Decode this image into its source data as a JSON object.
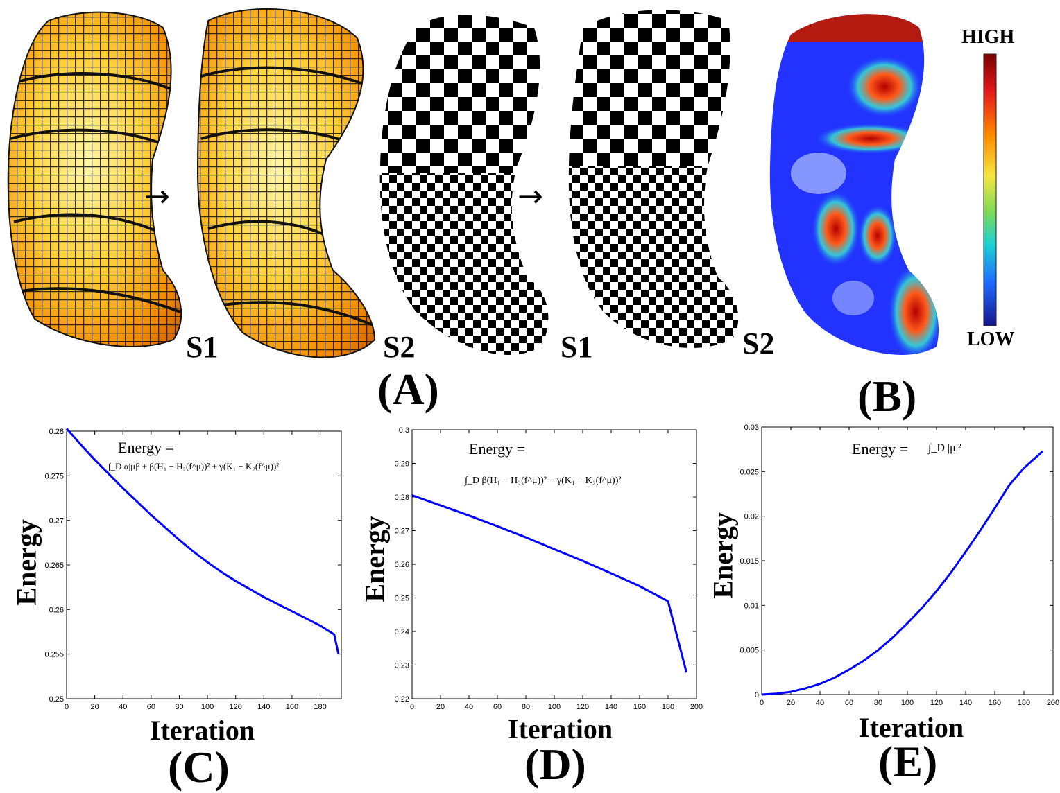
{
  "figure": {
    "panel_labels": [
      "(A)",
      "(B)",
      "(C)",
      "(D)",
      "(E)"
    ],
    "surface_labels": [
      "S1",
      "S2",
      "S1",
      "S2"
    ],
    "colorbar": {
      "high_label": "HIGH",
      "low_label": "LOW",
      "colors": [
        "#7a0000",
        "#e41a1c",
        "#ff8c00",
        "#f5e642",
        "#7ed957",
        "#1ed1d4",
        "#1e6bff",
        "#16168c"
      ]
    },
    "arrow_glyph": "→"
  },
  "chart_data": [
    {
      "panel": "(C)",
      "type": "line",
      "formula_title": "Energy =",
      "formula_body": "∫_D α|μ|² + β(H₁ − H₂(f^μ))² + γ(K₁ − K₂(f^μ))²",
      "xlabel": "Iteration",
      "ylabel": "Energy",
      "xlim": [
        0,
        195
      ],
      "ylim": [
        0.25,
        0.28
      ],
      "xticks": [
        "0",
        "20",
        "40",
        "60",
        "80",
        "100",
        "120",
        "140",
        "160",
        "180"
      ],
      "yticks": [
        "0.25",
        "0.255",
        "0.26",
        "0.265",
        "0.27",
        "0.275",
        "0.28"
      ],
      "line_color": "#0000ff",
      "series": [
        {
          "x": [
            0,
            10,
            20,
            30,
            40,
            50,
            60,
            70,
            80,
            90,
            100,
            110,
            120,
            130,
            140,
            150,
            160,
            170,
            180,
            190,
            193
          ],
          "y": [
            0.2803,
            0.2785,
            0.2768,
            0.2752,
            0.2736,
            0.2721,
            0.2706,
            0.2692,
            0.2678,
            0.2665,
            0.2653,
            0.2642,
            0.2632,
            0.2623,
            0.2614,
            0.2606,
            0.2598,
            0.259,
            0.2582,
            0.2572,
            0.255
          ]
        }
      ]
    },
    {
      "panel": "(D)",
      "type": "line",
      "formula_title": "Energy =",
      "formula_body": "∫_D β(H₁ − H₂(f^μ))² + γ(K₁ − K₂(f^μ))²",
      "xlabel": "Iteration",
      "ylabel": "Energy",
      "xlim": [
        0,
        200
      ],
      "ylim": [
        0.22,
        0.3
      ],
      "xticks": [
        "0",
        "20",
        "40",
        "60",
        "80",
        "100",
        "120",
        "140",
        "160",
        "180",
        "200"
      ],
      "yticks": [
        "0.22",
        "0.23",
        "0.24",
        "0.25",
        "0.26",
        "0.27",
        "0.28",
        "0.29",
        "0.3"
      ],
      "line_color": "#0000ff",
      "series": [
        {
          "x": [
            0,
            20,
            40,
            60,
            80,
            100,
            120,
            140,
            160,
            180,
            193
          ],
          "y": [
            0.2805,
            0.2775,
            0.2745,
            0.2713,
            0.268,
            0.2645,
            0.261,
            0.2573,
            0.2535,
            0.249,
            0.2278
          ]
        }
      ]
    },
    {
      "panel": "(E)",
      "type": "line",
      "formula_title": "Energy =",
      "formula_body": "∫_D |μ|²",
      "xlabel": "Iteration",
      "ylabel": "Energy",
      "xlim": [
        0,
        200
      ],
      "ylim": [
        0,
        0.03
      ],
      "xticks": [
        "0",
        "20",
        "40",
        "60",
        "80",
        "100",
        "120",
        "140",
        "160",
        "180",
        "200"
      ],
      "yticks": [
        "0",
        "0.005",
        "0.01",
        "0.015",
        "0.02",
        "0.025",
        "0.03"
      ],
      "line_color": "#0000ff",
      "series": [
        {
          "x": [
            0,
            10,
            20,
            30,
            40,
            50,
            60,
            70,
            80,
            90,
            100,
            110,
            120,
            130,
            140,
            150,
            160,
            170,
            180,
            193
          ],
          "y": [
            0.0,
            0.0001,
            0.0003,
            0.0007,
            0.0012,
            0.0019,
            0.0028,
            0.0038,
            0.005,
            0.0064,
            0.008,
            0.0097,
            0.0116,
            0.0137,
            0.016,
            0.0184,
            0.0209,
            0.0235,
            0.0254,
            0.0273
          ]
        }
      ]
    }
  ]
}
